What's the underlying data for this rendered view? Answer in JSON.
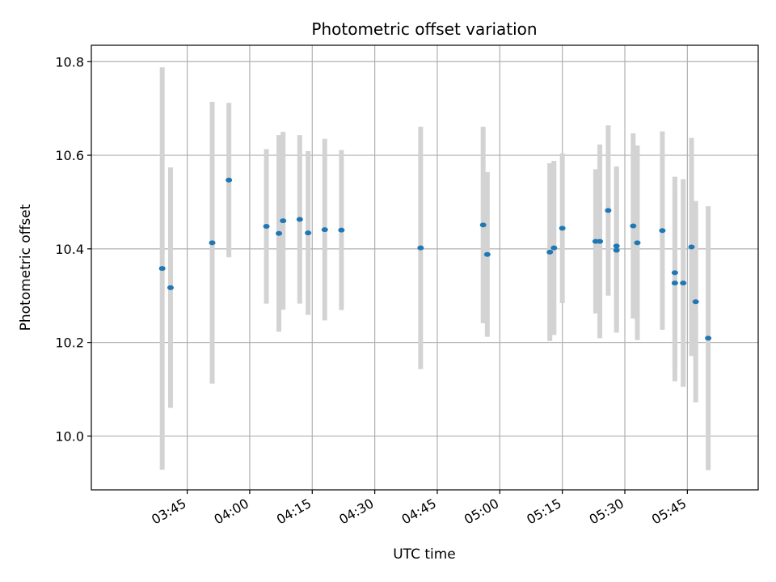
{
  "chart_data": {
    "type": "scatter",
    "title": "Photometric offset variation",
    "xlabel": "UTC time",
    "ylabel": "Photometric offset",
    "x_unit": "UTC time (HH:MM)",
    "xlim": [
      "03:22",
      "06:02"
    ],
    "ylim": [
      9.885,
      10.835
    ],
    "x_ticks": [
      "03:45",
      "04:00",
      "04:15",
      "04:30",
      "04:45",
      "05:00",
      "05:15",
      "05:30",
      "05:45"
    ],
    "y_ticks": [
      10.0,
      10.2,
      10.4,
      10.6,
      10.8
    ],
    "grid": true,
    "legend": "none",
    "marker_color": "#1f77b4",
    "errorbar_color": "#d3d3d3",
    "points": [
      {
        "x": "03:39",
        "y": 10.358,
        "err": 0.43
      },
      {
        "x": "03:41",
        "y": 10.317,
        "err": 0.257
      },
      {
        "x": "03:51",
        "y": 10.413,
        "err": 0.301
      },
      {
        "x": "03:55",
        "y": 10.547,
        "err": 0.165
      },
      {
        "x": "04:04",
        "y": 10.448,
        "err": 0.165
      },
      {
        "x": "04:07",
        "y": 10.433,
        "err": 0.21
      },
      {
        "x": "04:08",
        "y": 10.46,
        "err": 0.19
      },
      {
        "x": "04:12",
        "y": 10.463,
        "err": 0.18
      },
      {
        "x": "04:14",
        "y": 10.434,
        "err": 0.175
      },
      {
        "x": "04:18",
        "y": 10.441,
        "err": 0.194
      },
      {
        "x": "04:22",
        "y": 10.44,
        "err": 0.171
      },
      {
        "x": "04:41",
        "y": 10.402,
        "err": 0.259
      },
      {
        "x": "04:56",
        "y": 10.451,
        "err": 0.21
      },
      {
        "x": "04:57",
        "y": 10.388,
        "err": 0.176
      },
      {
        "x": "05:12",
        "y": 10.393,
        "err": 0.19
      },
      {
        "x": "05:13",
        "y": 10.402,
        "err": 0.186
      },
      {
        "x": "05:15",
        "y": 10.444,
        "err": 0.16
      },
      {
        "x": "05:23",
        "y": 10.416,
        "err": 0.154
      },
      {
        "x": "05:24",
        "y": 10.416,
        "err": 0.207
      },
      {
        "x": "05:26",
        "y": 10.482,
        "err": 0.182
      },
      {
        "x": "05:28",
        "y": 10.406,
        "err": 0.17
      },
      {
        "x": "05:28",
        "y": 10.397,
        "err": 0.176
      },
      {
        "x": "05:32",
        "y": 10.449,
        "err": 0.198
      },
      {
        "x": "05:33",
        "y": 10.413,
        "err": 0.208
      },
      {
        "x": "05:39",
        "y": 10.439,
        "err": 0.212
      },
      {
        "x": "05:42",
        "y": 10.349,
        "err": 0.205
      },
      {
        "x": "05:42",
        "y": 10.327,
        "err": 0.21
      },
      {
        "x": "05:44",
        "y": 10.327,
        "err": 0.222
      },
      {
        "x": "05:46",
        "y": 10.404,
        "err": 0.233
      },
      {
        "x": "05:47",
        "y": 10.287,
        "err": 0.215
      },
      {
        "x": "05:50",
        "y": 10.209,
        "err": 0.282
      }
    ]
  }
}
